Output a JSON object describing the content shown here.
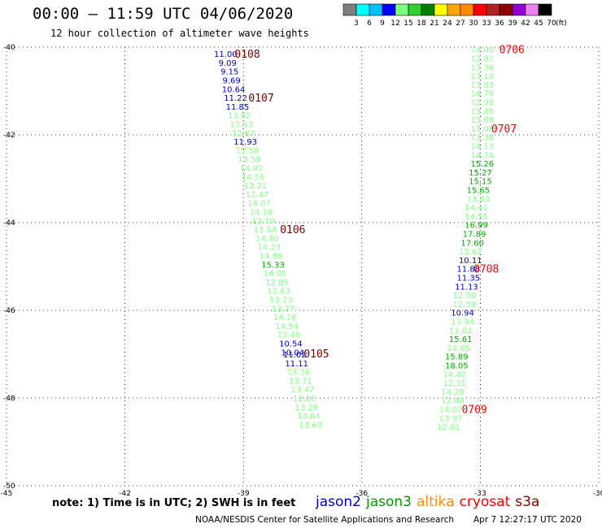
{
  "title": "00:00 – 11:59 UTC 04/06/2020",
  "subtitle": "12 hour collection of altimeter wave heights",
  "note": "note: 1) Time is in UTC; 2) SWH is in feet",
  "credit": "NOAA/NESDIS Center for Satellite Applications and Research",
  "timestamp": "Apr  7 12:27:17 UTC 2020",
  "colorbar": {
    "unit": "(ft)",
    "labels": [
      "3",
      "6",
      "9",
      "12",
      "15",
      "18",
      "21",
      "24",
      "27",
      "30",
      "33",
      "36",
      "39",
      "42",
      "45",
      "70"
    ],
    "colors": [
      "#7f7f7f",
      "#00ffff",
      "#00bfff",
      "#0000ff",
      "#7fff7f",
      "#32cd32",
      "#008000",
      "#ffff00",
      "#ffa500",
      "#ff8c00",
      "#ff0000",
      "#b22222",
      "#8b0000",
      "#9400d3",
      "#ee82ee",
      "#000000"
    ]
  },
  "legend": [
    {
      "name": "jason2",
      "color": "#0000cc"
    },
    {
      "name": "jason3",
      "color": "#009900"
    },
    {
      "name": "altika",
      "color": "#ff8c00"
    },
    {
      "name": "cryosat",
      "color": "#ff0000"
    },
    {
      "name": "s3a",
      "color": "#800000"
    }
  ],
  "chart_data": {
    "type": "scatter",
    "xlim": [
      -45,
      -30
    ],
    "ylim": [
      -50,
      -40
    ],
    "x_ticks": [
      -45,
      -42,
      -39,
      -36,
      -33,
      -30
    ],
    "y_ticks": [
      -40,
      -42,
      -44,
      -46,
      -48,
      -50
    ],
    "grid": true,
    "class_colors": {
      "b": "#0000cc",
      "g": "#7fff7f",
      "d": "#00aa00"
    },
    "tracks": [
      {
        "points": [
          {
            "lat": -40.15,
            "lon": -39.45,
            "v": "11.00",
            "c": "b"
          },
          {
            "lat": -40.35,
            "lon": -39.4,
            "v": "9.09",
            "c": "b"
          },
          {
            "lat": -40.55,
            "lon": -39.35,
            "v": "9.15",
            "c": "b"
          },
          {
            "lat": -40.75,
            "lon": -39.3,
            "v": "9.69",
            "c": "b"
          },
          {
            "lat": -40.95,
            "lon": -39.25,
            "v": "10.64",
            "c": "b"
          },
          {
            "lat": -41.15,
            "lon": -39.2,
            "v": "11.22",
            "c": "b"
          },
          {
            "lat": -41.35,
            "lon": -39.15,
            "v": "11.85",
            "c": "b"
          },
          {
            "lat": -41.55,
            "lon": -39.1,
            "v": "13.82",
            "c": "g"
          },
          {
            "lat": -41.75,
            "lon": -39.05,
            "v": "12.53",
            "c": "g"
          },
          {
            "lat": -41.95,
            "lon": -39.0,
            "v": "12.67",
            "c": "g"
          },
          {
            "lat": -42.15,
            "lon": -38.95,
            "v": "11.93",
            "c": "b"
          },
          {
            "lat": -42.35,
            "lon": -38.9,
            "v": "13.58",
            "c": "g"
          },
          {
            "lat": -42.55,
            "lon": -38.85,
            "v": "13.58",
            "c": "g"
          },
          {
            "lat": -42.75,
            "lon": -38.8,
            "v": "14.92",
            "c": "g"
          },
          {
            "lat": -42.95,
            "lon": -38.75,
            "v": "14.55",
            "c": "g"
          },
          {
            "lat": -43.15,
            "lon": -38.7,
            "v": "13.21",
            "c": "g"
          },
          {
            "lat": -43.35,
            "lon": -38.65,
            "v": "12.47",
            "c": "g"
          },
          {
            "lat": -43.55,
            "lon": -38.6,
            "v": "14.07",
            "c": "g"
          },
          {
            "lat": -43.75,
            "lon": -38.55,
            "v": "14.10",
            "c": "g"
          },
          {
            "lat": -43.95,
            "lon": -38.5,
            "v": "13.10",
            "c": "g"
          },
          {
            "lat": -44.15,
            "lon": -38.45,
            "v": "13.54",
            "c": "g"
          },
          {
            "lat": -44.35,
            "lon": -38.4,
            "v": "14.40",
            "c": "g"
          },
          {
            "lat": -44.55,
            "lon": -38.35,
            "v": "14.23",
            "c": "g"
          },
          {
            "lat": -44.75,
            "lon": -38.3,
            "v": "14.86",
            "c": "g"
          },
          {
            "lat": -44.95,
            "lon": -38.25,
            "v": "15.33",
            "c": "d"
          },
          {
            "lat": -45.15,
            "lon": -38.2,
            "v": "14.05",
            "c": "g"
          },
          {
            "lat": -45.35,
            "lon": -38.15,
            "v": "12.89",
            "c": "g"
          },
          {
            "lat": -45.55,
            "lon": -38.1,
            "v": "12.63",
            "c": "g"
          },
          {
            "lat": -45.75,
            "lon": -38.05,
            "v": "13.23",
            "c": "g"
          },
          {
            "lat": -45.95,
            "lon": -38.0,
            "v": "13.27",
            "c": "g"
          },
          {
            "lat": -46.15,
            "lon": -37.95,
            "v": "14.16",
            "c": "g"
          },
          {
            "lat": -46.35,
            "lon": -37.9,
            "v": "14.54",
            "c": "g"
          },
          {
            "lat": -46.55,
            "lon": -37.85,
            "v": "13.40",
            "c": "g"
          },
          {
            "lat": -46.75,
            "lon": -37.8,
            "v": "10.54",
            "c": "b"
          },
          {
            "lat": -46.95,
            "lon": -37.75,
            "v": "10.04",
            "c": "b"
          },
          {
            "lat": -47.0,
            "lon": -37.7,
            "v": "11.02",
            "c": "b"
          },
          {
            "lat": -47.2,
            "lon": -37.65,
            "v": "11.11",
            "c": "b"
          },
          {
            "lat": -47.4,
            "lon": -37.6,
            "v": "13.16",
            "c": "g"
          },
          {
            "lat": -47.6,
            "lon": -37.55,
            "v": "13.71",
            "c": "g"
          },
          {
            "lat": -47.8,
            "lon": -37.5,
            "v": "13.47",
            "c": "g"
          },
          {
            "lat": -48.0,
            "lon": -37.45,
            "v": "12.01",
            "c": "g"
          },
          {
            "lat": -48.2,
            "lon": -37.4,
            "v": "13.28",
            "c": "g"
          },
          {
            "lat": -48.4,
            "lon": -37.35,
            "v": "13.64",
            "c": "g"
          },
          {
            "lat": -48.6,
            "lon": -37.3,
            "v": "13.63",
            "c": "g"
          }
        ]
      },
      {
        "points": [
          {
            "lat": -40.05,
            "lon": -32.95,
            "v": "14.00",
            "c": "g"
          },
          {
            "lat": -40.25,
            "lon": -32.95,
            "v": "12.82",
            "c": "g"
          },
          {
            "lat": -40.45,
            "lon": -32.95,
            "v": "13.36",
            "c": "g"
          },
          {
            "lat": -40.65,
            "lon": -32.95,
            "v": "13.10",
            "c": "g"
          },
          {
            "lat": -40.85,
            "lon": -32.95,
            "v": "13.83",
            "c": "g"
          },
          {
            "lat": -41.05,
            "lon": -32.95,
            "v": "14.70",
            "c": "g"
          },
          {
            "lat": -41.25,
            "lon": -32.95,
            "v": "12.98",
            "c": "g"
          },
          {
            "lat": -41.45,
            "lon": -32.95,
            "v": "13.45",
            "c": "g"
          },
          {
            "lat": -41.65,
            "lon": -32.95,
            "v": "13.68",
            "c": "g"
          },
          {
            "lat": -41.85,
            "lon": -32.95,
            "v": "13.06",
            "c": "g"
          },
          {
            "lat": -42.05,
            "lon": -32.95,
            "v": "13.38",
            "c": "g"
          },
          {
            "lat": -42.25,
            "lon": -32.95,
            "v": "14.13",
            "c": "g"
          },
          {
            "lat": -42.45,
            "lon": -32.95,
            "v": "14.74",
            "c": "g"
          },
          {
            "lat": -42.65,
            "lon": -32.95,
            "v": "15.26",
            "c": "d"
          },
          {
            "lat": -42.85,
            "lon": -33.0,
            "v": "15.27",
            "c": "d"
          },
          {
            "lat": -43.05,
            "lon": -33.0,
            "v": "15.15",
            "c": "d"
          },
          {
            "lat": -43.25,
            "lon": -33.05,
            "v": "15.65",
            "c": "d"
          },
          {
            "lat": -43.45,
            "lon": -33.05,
            "v": "13.63",
            "c": "g"
          },
          {
            "lat": -43.65,
            "lon": -33.1,
            "v": "14.41",
            "c": "g"
          },
          {
            "lat": -43.85,
            "lon": -33.1,
            "v": "14.55",
            "c": "g"
          },
          {
            "lat": -44.05,
            "lon": -33.1,
            "v": "16.99",
            "c": "d"
          },
          {
            "lat": -44.25,
            "lon": -33.15,
            "v": "17.89",
            "c": "d"
          },
          {
            "lat": -44.45,
            "lon": -33.2,
            "v": "17.60",
            "c": "d"
          },
          {
            "lat": -44.65,
            "lon": -33.25,
            "v": "13.67",
            "c": "g"
          },
          {
            "lat": -44.85,
            "lon": -33.25,
            "v": "10.11",
            "c": "b"
          },
          {
            "lat": -45.05,
            "lon": -33.3,
            "v": "11.88",
            "c": "b"
          },
          {
            "lat": -45.25,
            "lon": -33.3,
            "v": "11.35",
            "c": "b"
          },
          {
            "lat": -45.45,
            "lon": -33.35,
            "v": "11.13",
            "c": "b"
          },
          {
            "lat": -45.65,
            "lon": -33.4,
            "v": "12.50",
            "c": "g"
          },
          {
            "lat": -45.85,
            "lon": -33.4,
            "v": "12.59",
            "c": "g"
          },
          {
            "lat": -46.05,
            "lon": -33.45,
            "v": "10.94",
            "c": "b"
          },
          {
            "lat": -46.25,
            "lon": -33.45,
            "v": "13.94",
            "c": "g"
          },
          {
            "lat": -46.45,
            "lon": -33.5,
            "v": "13.03",
            "c": "g"
          },
          {
            "lat": -46.65,
            "lon": -33.5,
            "v": "15.61",
            "c": "d"
          },
          {
            "lat": -46.85,
            "lon": -33.55,
            "v": "14.65",
            "c": "g"
          },
          {
            "lat": -47.05,
            "lon": -33.6,
            "v": "15.89",
            "c": "d"
          },
          {
            "lat": -47.25,
            "lon": -33.6,
            "v": "18.05",
            "c": "d"
          },
          {
            "lat": -47.45,
            "lon": -33.65,
            "v": "14.42",
            "c": "g"
          },
          {
            "lat": -47.65,
            "lon": -33.65,
            "v": "12.31",
            "c": "g"
          },
          {
            "lat": -47.85,
            "lon": -33.7,
            "v": "14.29",
            "c": "g"
          },
          {
            "lat": -48.05,
            "lon": -33.7,
            "v": "12.48",
            "c": "g"
          },
          {
            "lat": -48.25,
            "lon": -33.75,
            "v": "14.07",
            "c": "g"
          },
          {
            "lat": -48.45,
            "lon": -33.75,
            "v": "13.97",
            "c": "g"
          },
          {
            "lat": -48.65,
            "lon": -33.8,
            "v": "12.81",
            "c": "g"
          }
        ]
      }
    ],
    "time_labels": [
      {
        "text": "0108",
        "lat": -40.15,
        "lon": -38.9,
        "color": "#800000"
      },
      {
        "text": "0107",
        "lat": -41.15,
        "lon": -38.55,
        "color": "#800000"
      },
      {
        "text": "0106",
        "lat": -44.15,
        "lon": -37.75,
        "color": "#800000"
      },
      {
        "text": "0105",
        "lat": -46.98,
        "lon": -37.15,
        "color": "#800000"
      },
      {
        "text": "0706",
        "lat": -40.05,
        "lon": -32.2,
        "color": "#ff0000"
      },
      {
        "text": "0707",
        "lat": -41.85,
        "lon": -32.4,
        "color": "#ff0000"
      },
      {
        "text": "0708",
        "lat": -45.05,
        "lon": -32.85,
        "color": "#ff0000"
      },
      {
        "text": "0709",
        "lat": -48.25,
        "lon": -33.15,
        "color": "#ff0000"
      }
    ]
  }
}
